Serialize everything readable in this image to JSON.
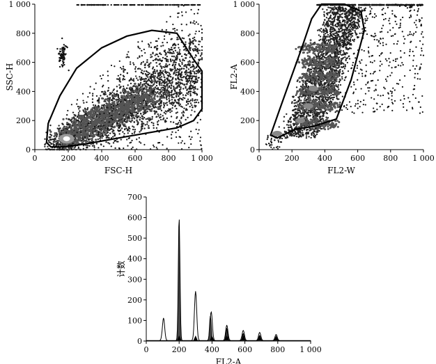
{
  "chart_data": [
    {
      "type": "scatter",
      "xlabel": "FSC-H",
      "ylabel": "SSC-H",
      "xlim": [
        0,
        1000
      ],
      "ylim": [
        0,
        1000
      ],
      "xticks": [
        "0",
        "200",
        "400",
        "600",
        "800",
        "1 000"
      ],
      "yticks": [
        "0",
        "200",
        "400",
        "600",
        "800",
        "1 000"
      ],
      "grid": false,
      "gate": [
        [
          95,
          20
        ],
        [
          70,
          50
        ],
        [
          80,
          180
        ],
        [
          150,
          370
        ],
        [
          250,
          560
        ],
        [
          400,
          700
        ],
        [
          550,
          780
        ],
        [
          700,
          820
        ],
        [
          850,
          800
        ],
        [
          950,
          620
        ],
        [
          1000,
          540
        ],
        [
          1000,
          280
        ],
        [
          950,
          200
        ],
        [
          850,
          150
        ],
        [
          700,
          120
        ],
        [
          550,
          90
        ],
        [
          380,
          55
        ],
        [
          250,
          30
        ],
        [
          150,
          18
        ]
      ]
    },
    {
      "type": "scatter",
      "xlabel": "FL2-W",
      "ylabel": "FL2-A",
      "xlim": [
        0,
        1000
      ],
      "ylim": [
        0,
        1000
      ],
      "xticks": [
        "0",
        "200",
        "400",
        "600",
        "800",
        "1 000"
      ],
      "yticks": [
        "0",
        "200",
        "400",
        "600",
        "800",
        "1 000"
      ],
      "grid": false,
      "gate": [
        [
          70,
          100
        ],
        [
          110,
          80
        ],
        [
          220,
          140
        ],
        [
          330,
          160
        ],
        [
          470,
          210
        ],
        [
          560,
          480
        ],
        [
          640,
          820
        ],
        [
          620,
          950
        ],
        [
          520,
          1000
        ],
        [
          380,
          1000
        ],
        [
          320,
          900
        ],
        [
          260,
          700
        ],
        [
          180,
          450
        ],
        [
          120,
          260
        ]
      ]
    },
    {
      "type": "area",
      "xlabel": "FL2-A",
      "ylabel": "计数",
      "xlim": [
        0,
        1000
      ],
      "ylim": [
        0,
        700
      ],
      "xticks": [
        "0",
        "200",
        "400",
        "600",
        "800",
        "1 000"
      ],
      "yticks": [
        "0",
        "100",
        "200",
        "300",
        "400",
        "500",
        "600",
        "700"
      ],
      "grid": false,
      "series": [
        {
          "fill": "#444444",
          "peaks": [
            [
              200,
              600
            ],
            [
              390,
              120
            ],
            [
              490,
              60
            ],
            [
              590,
              35
            ],
            [
              690,
              25
            ],
            [
              790,
              18
            ]
          ]
        },
        {
          "fill": "#ffffff",
          "peaks": [
            [
              105,
              110
            ],
            [
              300,
              240
            ],
            [
              395,
              140
            ],
            [
              490,
              75
            ],
            [
              590,
              50
            ],
            [
              690,
              40
            ],
            [
              790,
              30
            ]
          ]
        }
      ],
      "markers": [
        200,
        300,
        400,
        490,
        590,
        690,
        790
      ]
    }
  ]
}
